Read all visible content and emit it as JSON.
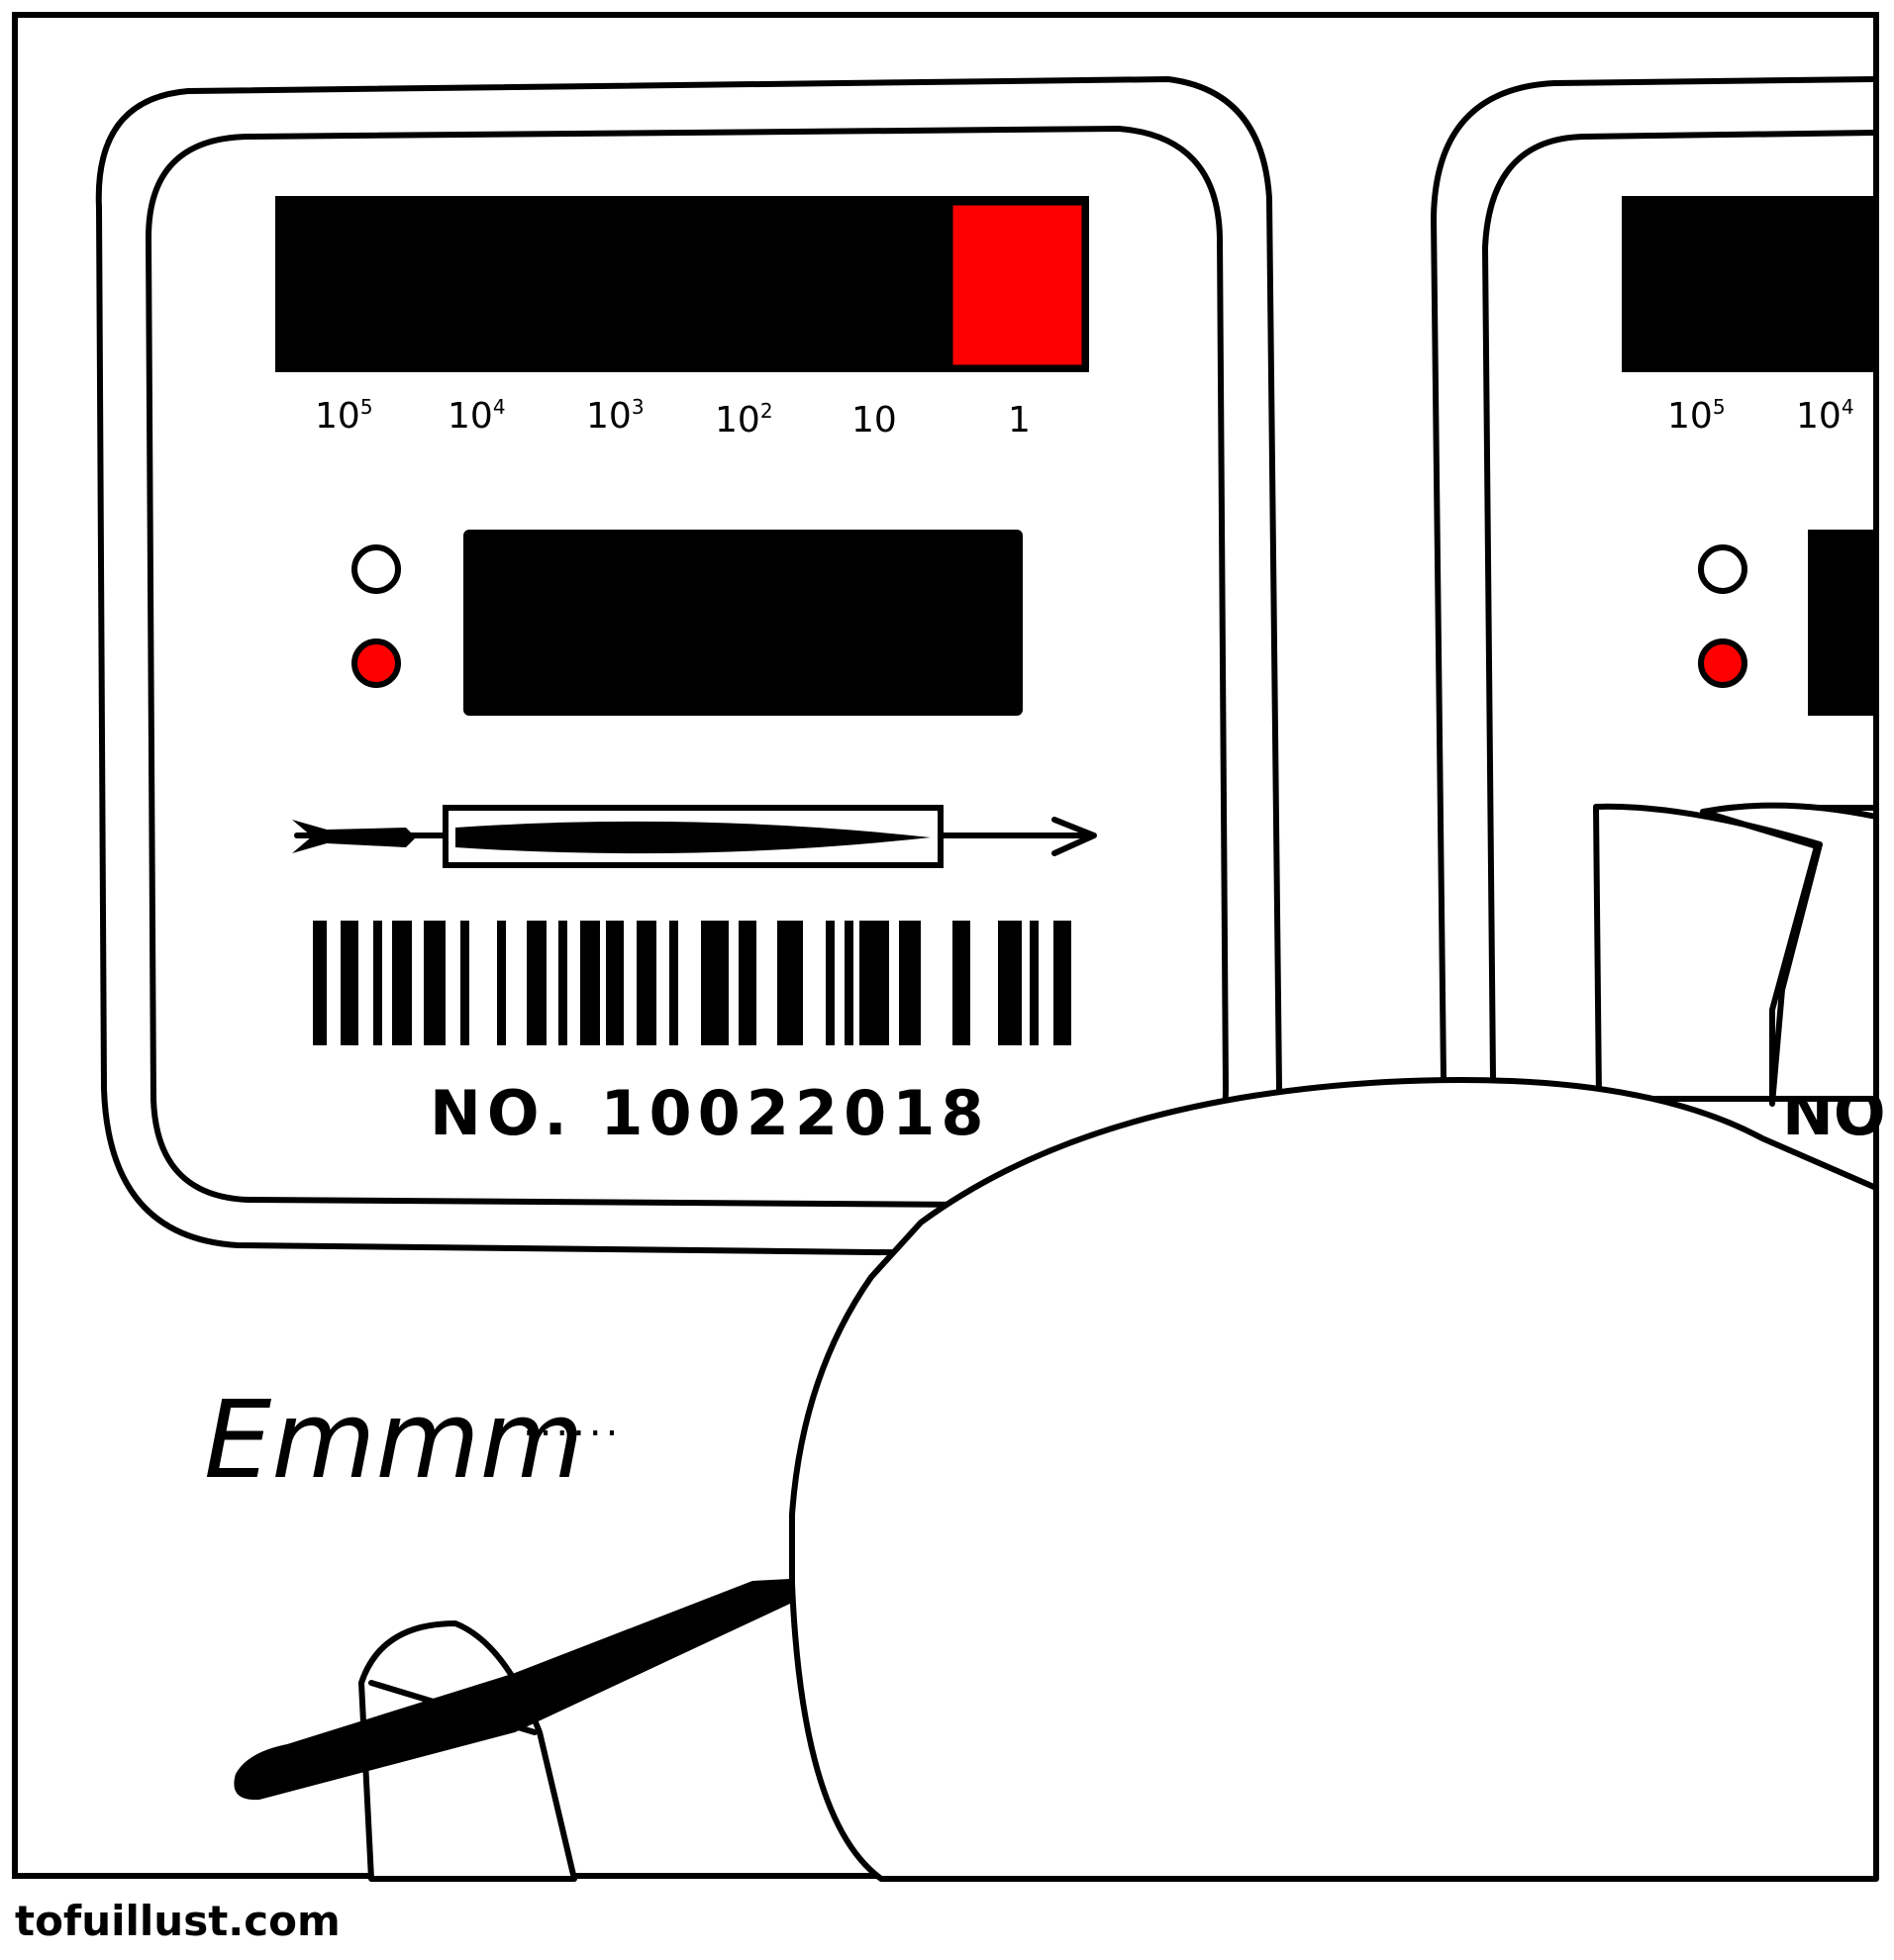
{
  "comic": {
    "panel": {
      "meter_main": {
        "scale_labels": [
          {
            "base": "10",
            "exp": "5"
          },
          {
            "base": "10",
            "exp": "4"
          },
          {
            "base": "10",
            "exp": "3"
          },
          {
            "base": "10",
            "exp": "2"
          },
          {
            "base": "10",
            "exp": ""
          },
          {
            "base": "1",
            "exp": ""
          }
        ],
        "serial_number": "NO. 10022018"
      },
      "meter_partial": {
        "scale_labels": [
          {
            "base": "10",
            "exp": "5"
          },
          {
            "base": "10",
            "exp": "4"
          }
        ],
        "serial_partial": "NO"
      },
      "speech": "Emmm",
      "speech_trail": "......"
    },
    "credit": "tofuillust.com",
    "colors": {
      "ink": "#000000",
      "paper": "#ffffff",
      "indicator_red": "#ff0000"
    }
  }
}
